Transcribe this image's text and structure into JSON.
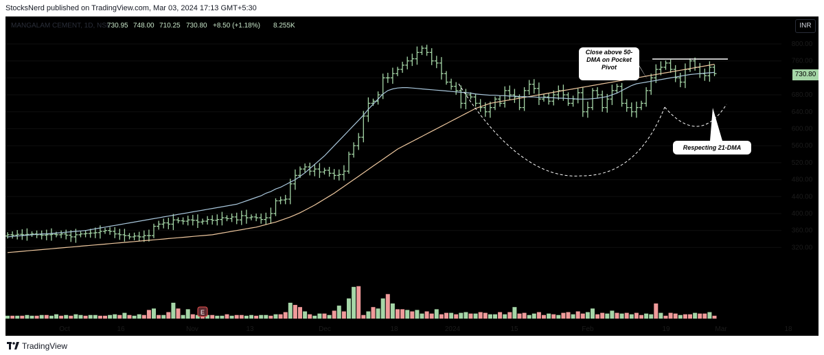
{
  "header": {
    "published_text": "StocksNerd published on TradingView.com, Mar 03, 2024 17:13 GMT+5:30"
  },
  "legend": {
    "symbol": "MANGALAM CEMENT, 1D, NSE",
    "open": "730.95",
    "high": "748.00",
    "low": "710.25",
    "close": "730.80",
    "change": "+8.50 (+1.18%)",
    "volume": "8.255K"
  },
  "currency_button": "INR",
  "last_price_label": "730.80",
  "event_marker": "E",
  "annotations": {
    "note1": "Close above 50-DMA on Pocket Pivot",
    "note2": "Respecting 21-DMA"
  },
  "footer": {
    "brand": "TradingView"
  },
  "colors": {
    "up": "#a5d6a7",
    "down": "#ef9a9a",
    "ma_fast": "#a9c7dc",
    "ma_slow": "#f0c9a0",
    "background": "#000000"
  },
  "chart_data": {
    "type": "ohlc",
    "price_axis": {
      "ticks": [
        320,
        360,
        400,
        440,
        480,
        520,
        560,
        600,
        640,
        680,
        720,
        760,
        800
      ]
    },
    "time_axis": {
      "labels": [
        "Oct",
        "16",
        "Nov",
        "13",
        "Dec",
        "18",
        "2024",
        "15",
        "Feb",
        "19",
        "Mar",
        "18"
      ]
    },
    "close_series": [
      350,
      349,
      351,
      350,
      351,
      352,
      350,
      349,
      350,
      351,
      350,
      352,
      349,
      345,
      350,
      352,
      353,
      354,
      355,
      358,
      360,
      358,
      352,
      350,
      348,
      345,
      347,
      345,
      348,
      348,
      370,
      375,
      378,
      375,
      385,
      383,
      382,
      385,
      384,
      380,
      382,
      386,
      384,
      386,
      390,
      388,
      392,
      385,
      395,
      390,
      392,
      390,
      386,
      390,
      400,
      430,
      432,
      434,
      470,
      490,
      505,
      510,
      500,
      505,
      498,
      502,
      495,
      490,
      492,
      500,
      540,
      560,
      580,
      630,
      660,
      665,
      680,
      720,
      720,
      730,
      740,
      750,
      760,
      765,
      780,
      790,
      780,
      760,
      755,
      730,
      710,
      700,
      690,
      660,
      680,
      675,
      660,
      650,
      640,
      650,
      670,
      660,
      690,
      680,
      675,
      650,
      690,
      705,
      695,
      670,
      675,
      665,
      680,
      690,
      680,
      660,
      670,
      685,
      640,
      650,
      690,
      680,
      650,
      670,
      690,
      700,
      660,
      650,
      640,
      650,
      660,
      690,
      720,
      740,
      745,
      755,
      740,
      720,
      710,
      740,
      760,
      745,
      730,
      725,
      745,
      730
    ],
    "volume_series": [
      4,
      4,
      4,
      4,
      5,
      4,
      4,
      5,
      5,
      4,
      6,
      4,
      5,
      4,
      6,
      5,
      4,
      5,
      5,
      4,
      4,
      5,
      6,
      5,
      8,
      5,
      4,
      6,
      5,
      12,
      14,
      5,
      5,
      9,
      22,
      14,
      5,
      13,
      6,
      5,
      5,
      5,
      5,
      4,
      4,
      6,
      4,
      5,
      5,
      4,
      5,
      4,
      5,
      5,
      4,
      6,
      6,
      9,
      22,
      19,
      16,
      10,
      6,
      4,
      7,
      7,
      5,
      11,
      18,
      10,
      28,
      44,
      45,
      5,
      10,
      16,
      14,
      28,
      34,
      21,
      13,
      13,
      12,
      10,
      12,
      7,
      10,
      7,
      13,
      6,
      8,
      8,
      6,
      8,
      9,
      7,
      7,
      9,
      8,
      6,
      6,
      9,
      6,
      9,
      16,
      7,
      8,
      5,
      7,
      9,
      5,
      7,
      6,
      5,
      8,
      9,
      6,
      10,
      7,
      9,
      14,
      6,
      8,
      7,
      11,
      8,
      7,
      8,
      6,
      8,
      5,
      7,
      6,
      21,
      8,
      4,
      8,
      7,
      5,
      6,
      6,
      8,
      7,
      7,
      9,
      4
    ],
    "volume_down_flags": [
      0,
      1,
      0,
      1,
      0,
      0,
      1,
      0,
      1,
      0,
      0,
      1,
      0,
      1,
      0,
      0,
      1,
      0,
      0,
      1,
      1,
      0,
      0,
      1,
      0,
      1,
      0,
      0,
      1,
      1,
      0,
      1,
      0,
      1,
      0,
      1,
      0,
      0,
      1,
      0,
      1,
      0,
      1,
      0,
      0,
      1,
      0,
      1,
      1,
      0,
      0,
      1,
      0,
      0,
      1,
      0,
      1,
      1,
      0,
      1,
      1,
      0,
      1,
      0,
      0,
      1,
      0,
      1,
      0,
      1,
      0,
      0,
      1,
      1,
      0,
      1,
      0,
      0,
      1,
      0,
      1,
      1,
      0,
      1,
      0,
      0,
      1,
      1,
      0,
      1,
      1,
      0,
      1,
      0,
      0,
      1,
      0,
      1,
      1,
      0,
      0,
      1,
      0,
      1,
      0,
      1,
      1,
      0,
      0,
      1,
      1,
      0,
      1,
      0,
      1,
      1,
      0,
      1,
      1,
      0,
      0,
      1,
      1,
      0,
      0,
      1,
      0,
      1,
      0,
      1,
      1,
      0,
      0,
      1,
      0,
      1,
      1,
      1,
      0,
      1,
      1,
      0,
      1,
      1,
      0,
      1
    ],
    "ma_fast_series": [
      345,
      346,
      347,
      348,
      349,
      350,
      351,
      352,
      352,
      353,
      354,
      355,
      356,
      357,
      358,
      359,
      360,
      362,
      364,
      366,
      368,
      370,
      372,
      374,
      376,
      378,
      380,
      382,
      384,
      386,
      388,
      390,
      392,
      394,
      396,
      398,
      400,
      402,
      404,
      406,
      408,
      410,
      412,
      414,
      416,
      418,
      420,
      422,
      426,
      430,
      434,
      438,
      442,
      448,
      452,
      458,
      462,
      468,
      474,
      480,
      488,
      496,
      506,
      516,
      526,
      536,
      548,
      560,
      572,
      584,
      596,
      608,
      620,
      632,
      646,
      658,
      670,
      682,
      690,
      694,
      696,
      697,
      697,
      696,
      695,
      694,
      693,
      692,
      691,
      690,
      689,
      688,
      687,
      686,
      685,
      684,
      682,
      681,
      680,
      679,
      679,
      678,
      678,
      677,
      677,
      676,
      676,
      675,
      675,
      674,
      674,
      673,
      673,
      672,
      672,
      671,
      671,
      670,
      670,
      670,
      671,
      672,
      674,
      676,
      680,
      684,
      690,
      696,
      702,
      706,
      708,
      710,
      712,
      714,
      716,
      718,
      720,
      722,
      724,
      726,
      728,
      729,
      730,
      731,
      732,
      733
    ],
    "ma_slow_series": [
      308,
      309,
      310,
      311,
      312,
      313,
      314,
      315,
      316,
      317,
      318,
      319,
      320,
      321,
      322,
      323,
      324,
      325,
      326,
      327,
      328,
      329,
      330,
      331,
      332,
      333,
      334,
      335,
      336,
      337,
      338,
      339,
      340,
      341,
      342,
      343,
      344,
      345,
      346,
      347,
      348,
      349,
      350,
      352,
      354,
      356,
      358,
      360,
      362,
      364,
      366,
      368,
      371,
      374,
      377,
      380,
      384,
      388,
      392,
      397,
      402,
      408,
      414,
      420,
      427,
      434,
      441,
      448,
      456,
      464,
      472,
      480,
      488,
      496,
      504,
      512,
      520,
      528,
      536,
      544,
      552,
      558,
      564,
      570,
      576,
      582,
      588,
      594,
      600,
      606,
      612,
      618,
      624,
      630,
      636,
      642,
      648,
      652,
      656,
      660,
      662,
      664,
      666,
      668,
      670,
      672,
      674,
      676,
      678,
      680,
      682,
      684,
      686,
      688,
      690,
      692,
      694,
      696,
      698,
      700,
      702,
      704,
      706,
      708,
      710,
      712,
      714,
      716,
      718,
      720,
      722,
      724,
      726,
      728,
      730,
      732,
      734,
      736,
      738,
      740,
      742,
      744,
      746,
      748,
      750,
      752
    ]
  }
}
